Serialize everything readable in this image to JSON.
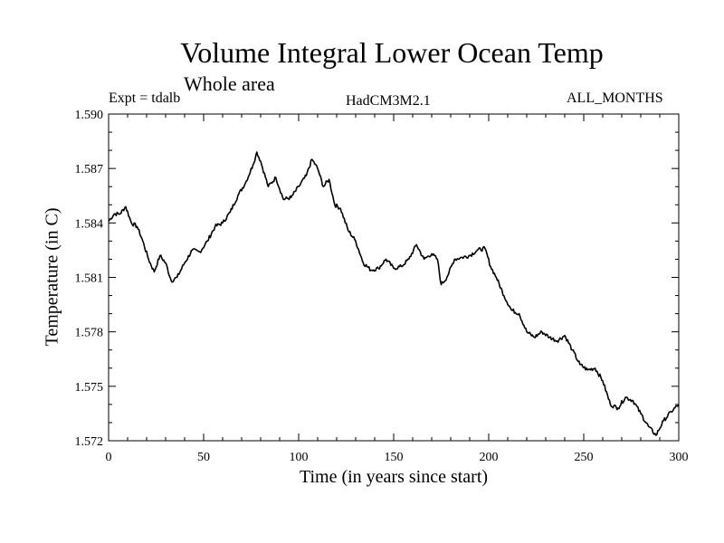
{
  "chart_data": {
    "type": "line",
    "title": "Volume Integral Lower Ocean Temp",
    "subtitle": "Whole area",
    "experiment_label": "Expt = tdalb",
    "model_label": "HadCM3M2.1",
    "months_label": "ALL_MONTHS",
    "xlabel": "Time (in years since start)",
    "ylabel": "Temperature (in C)",
    "xlim": [
      0,
      300
    ],
    "ylim": [
      1.572,
      1.59
    ],
    "xticks": [
      0,
      50,
      100,
      150,
      200,
      250,
      300
    ],
    "xtick_labels": [
      "0",
      "50",
      "100",
      "150",
      "200",
      "250",
      "300"
    ],
    "yticks": [
      1.572,
      1.575,
      1.578,
      1.581,
      1.584,
      1.587,
      1.59
    ],
    "ytick_labels": [
      "1.572",
      "1.575",
      "1.578",
      "1.581",
      "1.584",
      "1.587",
      "1.590"
    ],
    "grid": false,
    "series": [
      {
        "name": "Temperature",
        "color": "#000000",
        "x": [
          0,
          3,
          6,
          9,
          12,
          15,
          18,
          21,
          24,
          27,
          30,
          33,
          36,
          40,
          44,
          48,
          52,
          56,
          60,
          64,
          68,
          72,
          76,
          78,
          80,
          84,
          88,
          92,
          96,
          100,
          104,
          107,
          110,
          113,
          116,
          119,
          122,
          126,
          130,
          134,
          138,
          142,
          146,
          150,
          154,
          158,
          162,
          166,
          170,
          173,
          175,
          178,
          182,
          186,
          190,
          194,
          198,
          201,
          204,
          208,
          212,
          216,
          220,
          224,
          228,
          232,
          236,
          240,
          244,
          248,
          252,
          256,
          260,
          264,
          268,
          272,
          276,
          280,
          284,
          288,
          292,
          296,
          300
        ],
        "y": [
          1.5841,
          1.5845,
          1.5845,
          1.5849,
          1.584,
          1.5838,
          1.583,
          1.582,
          1.5813,
          1.5822,
          1.5818,
          1.5808,
          1.581,
          1.5818,
          1.5825,
          1.5824,
          1.583,
          1.5838,
          1.584,
          1.5846,
          1.5855,
          1.5862,
          1.5872,
          1.5879,
          1.5874,
          1.586,
          1.5865,
          1.5853,
          1.5854,
          1.586,
          1.5866,
          1.5875,
          1.587,
          1.586,
          1.5864,
          1.585,
          1.5848,
          1.5836,
          1.583,
          1.5818,
          1.5814,
          1.5815,
          1.582,
          1.5815,
          1.5816,
          1.582,
          1.5828,
          1.582,
          1.5823,
          1.582,
          1.5806,
          1.581,
          1.582,
          1.5821,
          1.5822,
          1.5825,
          1.5826,
          1.5816,
          1.581,
          1.58,
          1.5792,
          1.579,
          1.578,
          1.5777,
          1.578,
          1.5777,
          1.5775,
          1.5778,
          1.577,
          1.5762,
          1.5759,
          1.576,
          1.5753,
          1.574,
          1.5738,
          1.5744,
          1.5742,
          1.5735,
          1.5728,
          1.5723,
          1.5731,
          1.5736,
          1.574
        ]
      }
    ]
  }
}
